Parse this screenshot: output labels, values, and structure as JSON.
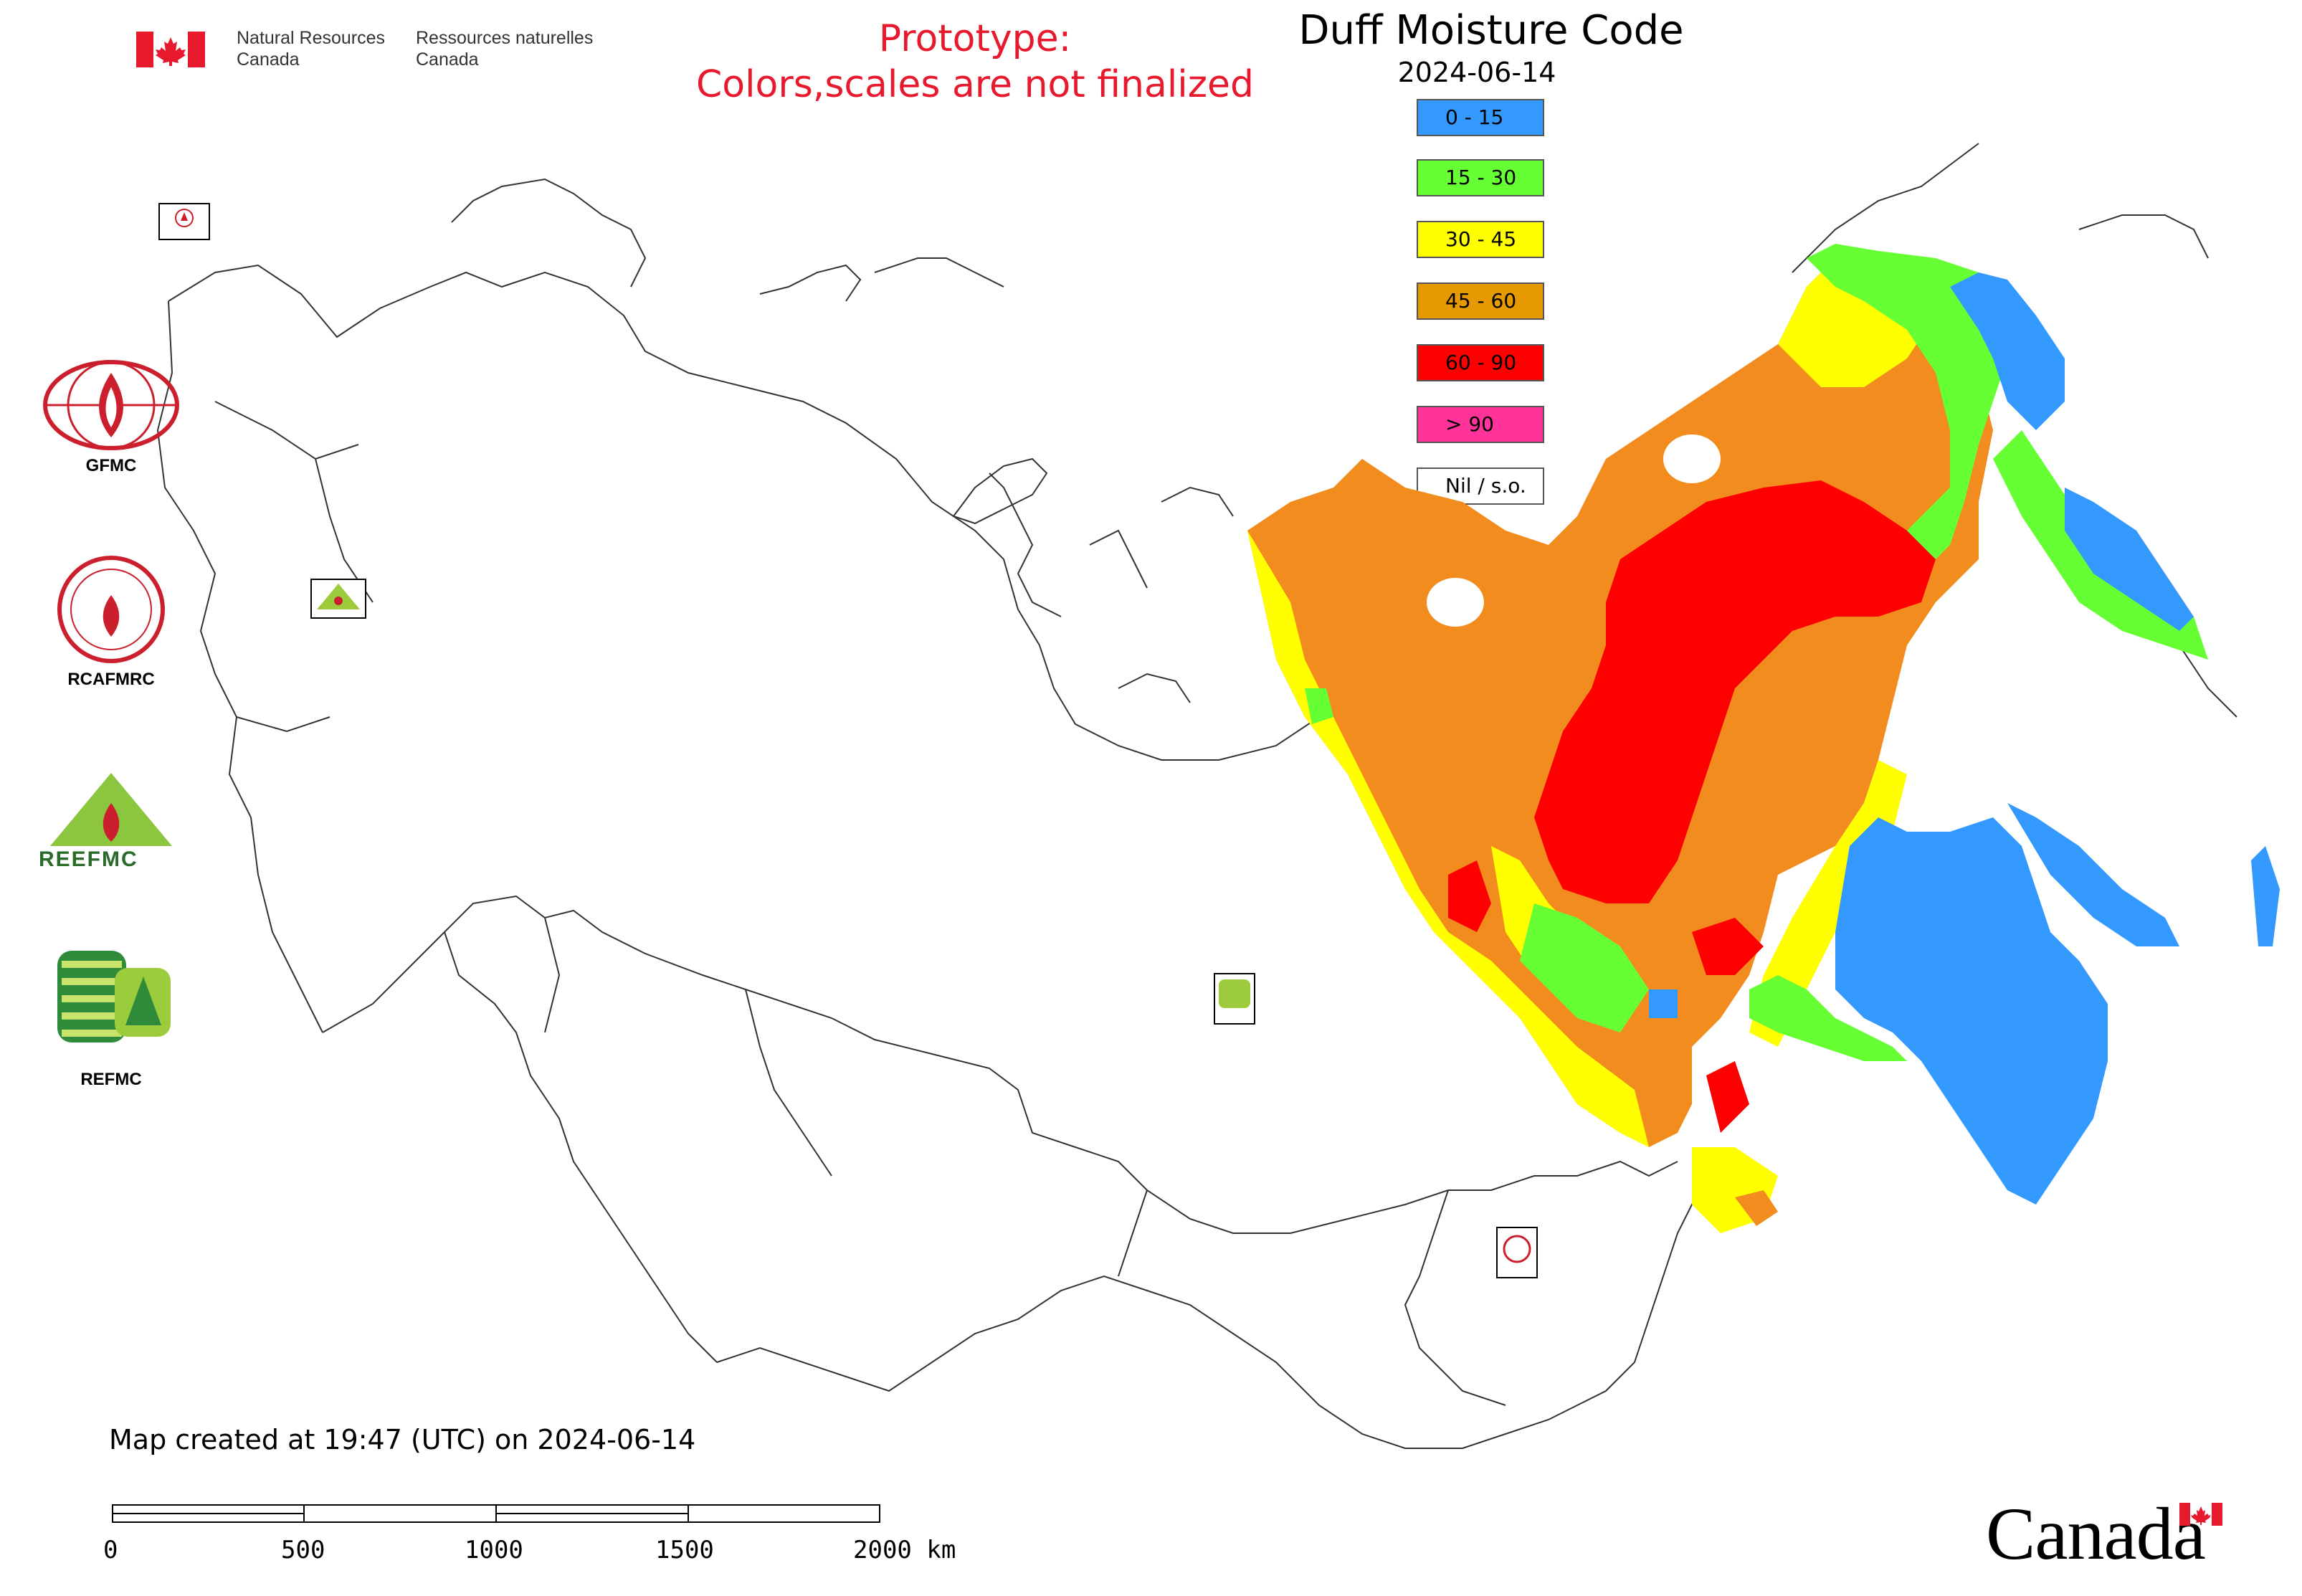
{
  "header": {
    "org_en": "Natural Resources\nCanada",
    "org_fr": "Ressources naturelles\nCanada",
    "prototype_line1": "Prototype:",
    "prototype_line2": "Colors,scales are not finalized"
  },
  "map": {
    "title": "Duff Moisture Code",
    "date": "2024-06-14",
    "legend": [
      {
        "label": "0 - 15",
        "color": "#3399ff"
      },
      {
        "label": "15 - 30",
        "color": "#66ff33"
      },
      {
        "label": "30 - 45",
        "color": "#ffff00"
      },
      {
        "label": "45 - 60",
        "color": "#e69900"
      },
      {
        "label": "60 - 90",
        "color": "#ff0000"
      },
      {
        "label": "> 90",
        "color": "#ff3399"
      },
      {
        "label": "Nil / s.o.",
        "color": "#ffffff"
      }
    ],
    "footer_created": "Map created at 19:47 (UTC) on 2024-06-14",
    "scale_labels": [
      "0",
      "500",
      "1000",
      "1500",
      "2000 km"
    ]
  },
  "logos": {
    "gfmc": "GFMC",
    "rcafmrc": "RCAFMRC",
    "reefmc": "REEFMC",
    "refmc": "REFMC"
  },
  "wordmark": "Canada"
}
